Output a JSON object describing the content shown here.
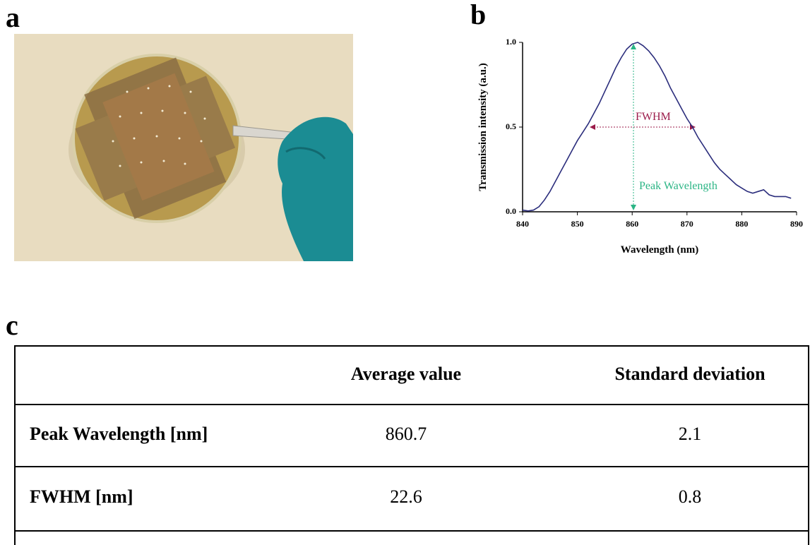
{
  "panel_labels": [
    "a",
    "b",
    "c"
  ],
  "chart_data": {
    "type": "line",
    "x_label": "Wavelength (nm)",
    "y_label": "Transmission intensity (a.u.)",
    "annotations": [
      "FWHM",
      "Peak Wavelength"
    ],
    "color": "#2b2d7c",
    "x": [
      840,
      841,
      842,
      843,
      844,
      845,
      846,
      847,
      848,
      849,
      850,
      851,
      852,
      853,
      854,
      855,
      856,
      857,
      858,
      859,
      860,
      861,
      862,
      863,
      864,
      865,
      866,
      867,
      868,
      869,
      870,
      871,
      872,
      873,
      874,
      875,
      876,
      877,
      878,
      879,
      880,
      881,
      882,
      883,
      884,
      885,
      886,
      887,
      888,
      889
    ],
    "values": [
      0.01,
      0.005,
      0.01,
      0.03,
      0.07,
      0.12,
      0.18,
      0.24,
      0.3,
      0.36,
      0.42,
      0.47,
      0.52,
      0.58,
      0.64,
      0.71,
      0.78,
      0.85,
      0.91,
      0.96,
      0.99,
      1.0,
      0.98,
      0.95,
      0.91,
      0.86,
      0.8,
      0.73,
      0.67,
      0.61,
      0.55,
      0.5,
      0.44,
      0.39,
      0.34,
      0.29,
      0.25,
      0.22,
      0.19,
      0.16,
      0.14,
      0.12,
      0.11,
      0.12,
      0.13,
      0.1,
      0.09,
      0.09,
      0.09,
      0.08
    ],
    "xlim": [
      840,
      890
    ],
    "xticks": [
      840,
      850,
      860,
      870,
      880,
      890
    ],
    "ylim": [
      0,
      1
    ],
    "yticks": [
      {
        "value": 0,
        "label": "0.0"
      },
      {
        "value": 0.5,
        "label": "0.5"
      },
      {
        "value": 1,
        "label": "1.0"
      }
    ]
  },
  "table": {
    "header": [
      "Average value",
      "Standard deviation"
    ],
    "rows": [
      [
        "Peak Wavelength [nm]",
        "860.7",
        "2.1"
      ],
      [
        "FWHM [nm]",
        "22.6",
        "0.8"
      ]
    ]
  }
}
